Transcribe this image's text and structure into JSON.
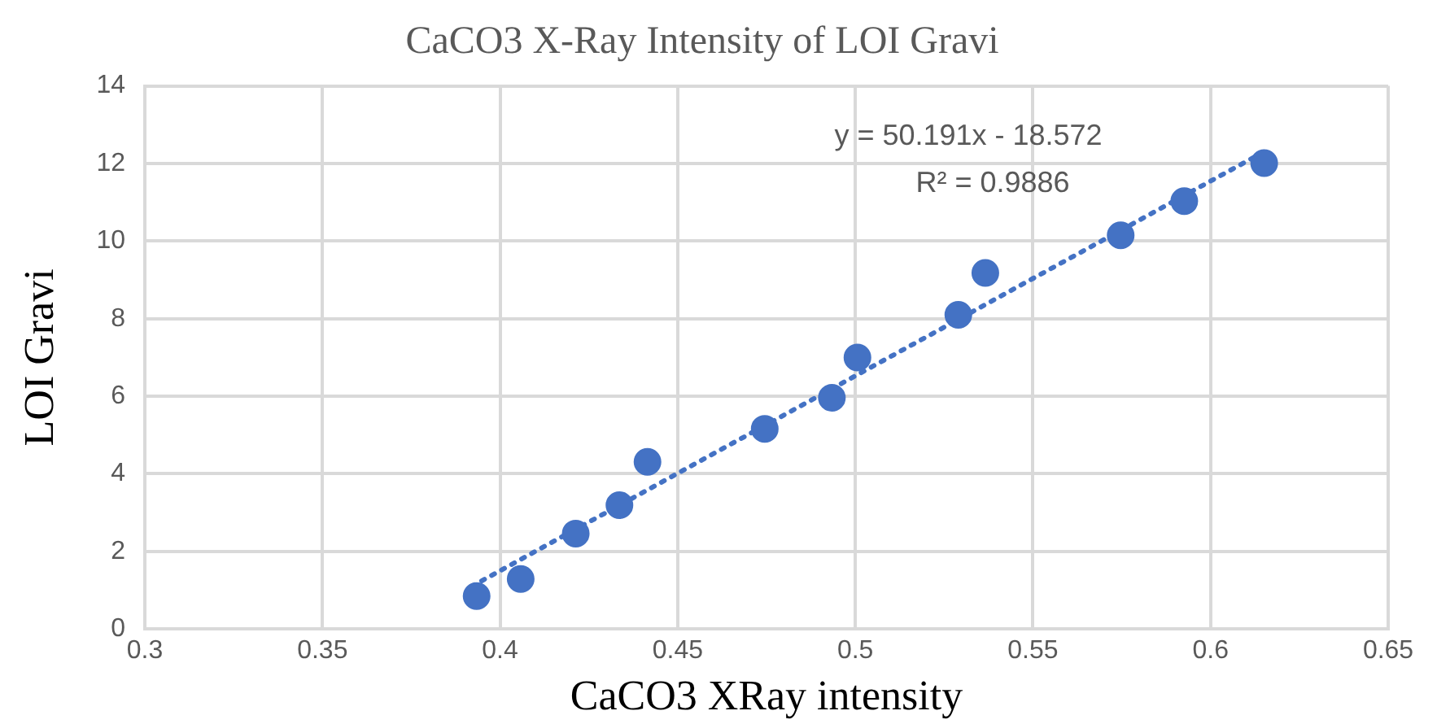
{
  "chart_data": {
    "type": "scatter",
    "title": "CaCO3 X-Ray Intensity of LOI Gravi",
    "xlabel": "CaCO3 XRay intensity",
    "ylabel": "LOI Gravi",
    "xlim": [
      0.3,
      0.65
    ],
    "xticks": [
      0.3,
      0.35,
      0.4,
      0.45,
      0.5,
      0.55,
      0.6,
      0.65
    ],
    "ylim": [
      0,
      14
    ],
    "yticks": [
      0,
      2,
      4,
      6,
      8,
      10,
      12,
      14
    ],
    "grid": true,
    "legend": false,
    "marker": "circle",
    "annotations": [
      "y = 50.191x - 18.572",
      "R² = 0.9886"
    ],
    "series": [
      {
        "type": "scatter",
        "color": "#4472c4",
        "x": [
          0.3934,
          0.4058,
          0.4213,
          0.4336,
          0.4415,
          0.4745,
          0.4934,
          0.5006,
          0.529,
          0.5366,
          0.5747,
          0.5926,
          0.6151
        ],
        "values": [
          0.85,
          1.29,
          2.46,
          3.19,
          4.31,
          5.16,
          5.96,
          7.0,
          8.1,
          9.18,
          10.15,
          11.03,
          12.01
        ]
      },
      {
        "type": "line",
        "color": "#4472c4",
        "marker": "none",
        "line_style": "dotted",
        "x": [
          0.392,
          0.616
        ],
        "values": [
          1.1,
          12.35
        ]
      }
    ]
  }
}
